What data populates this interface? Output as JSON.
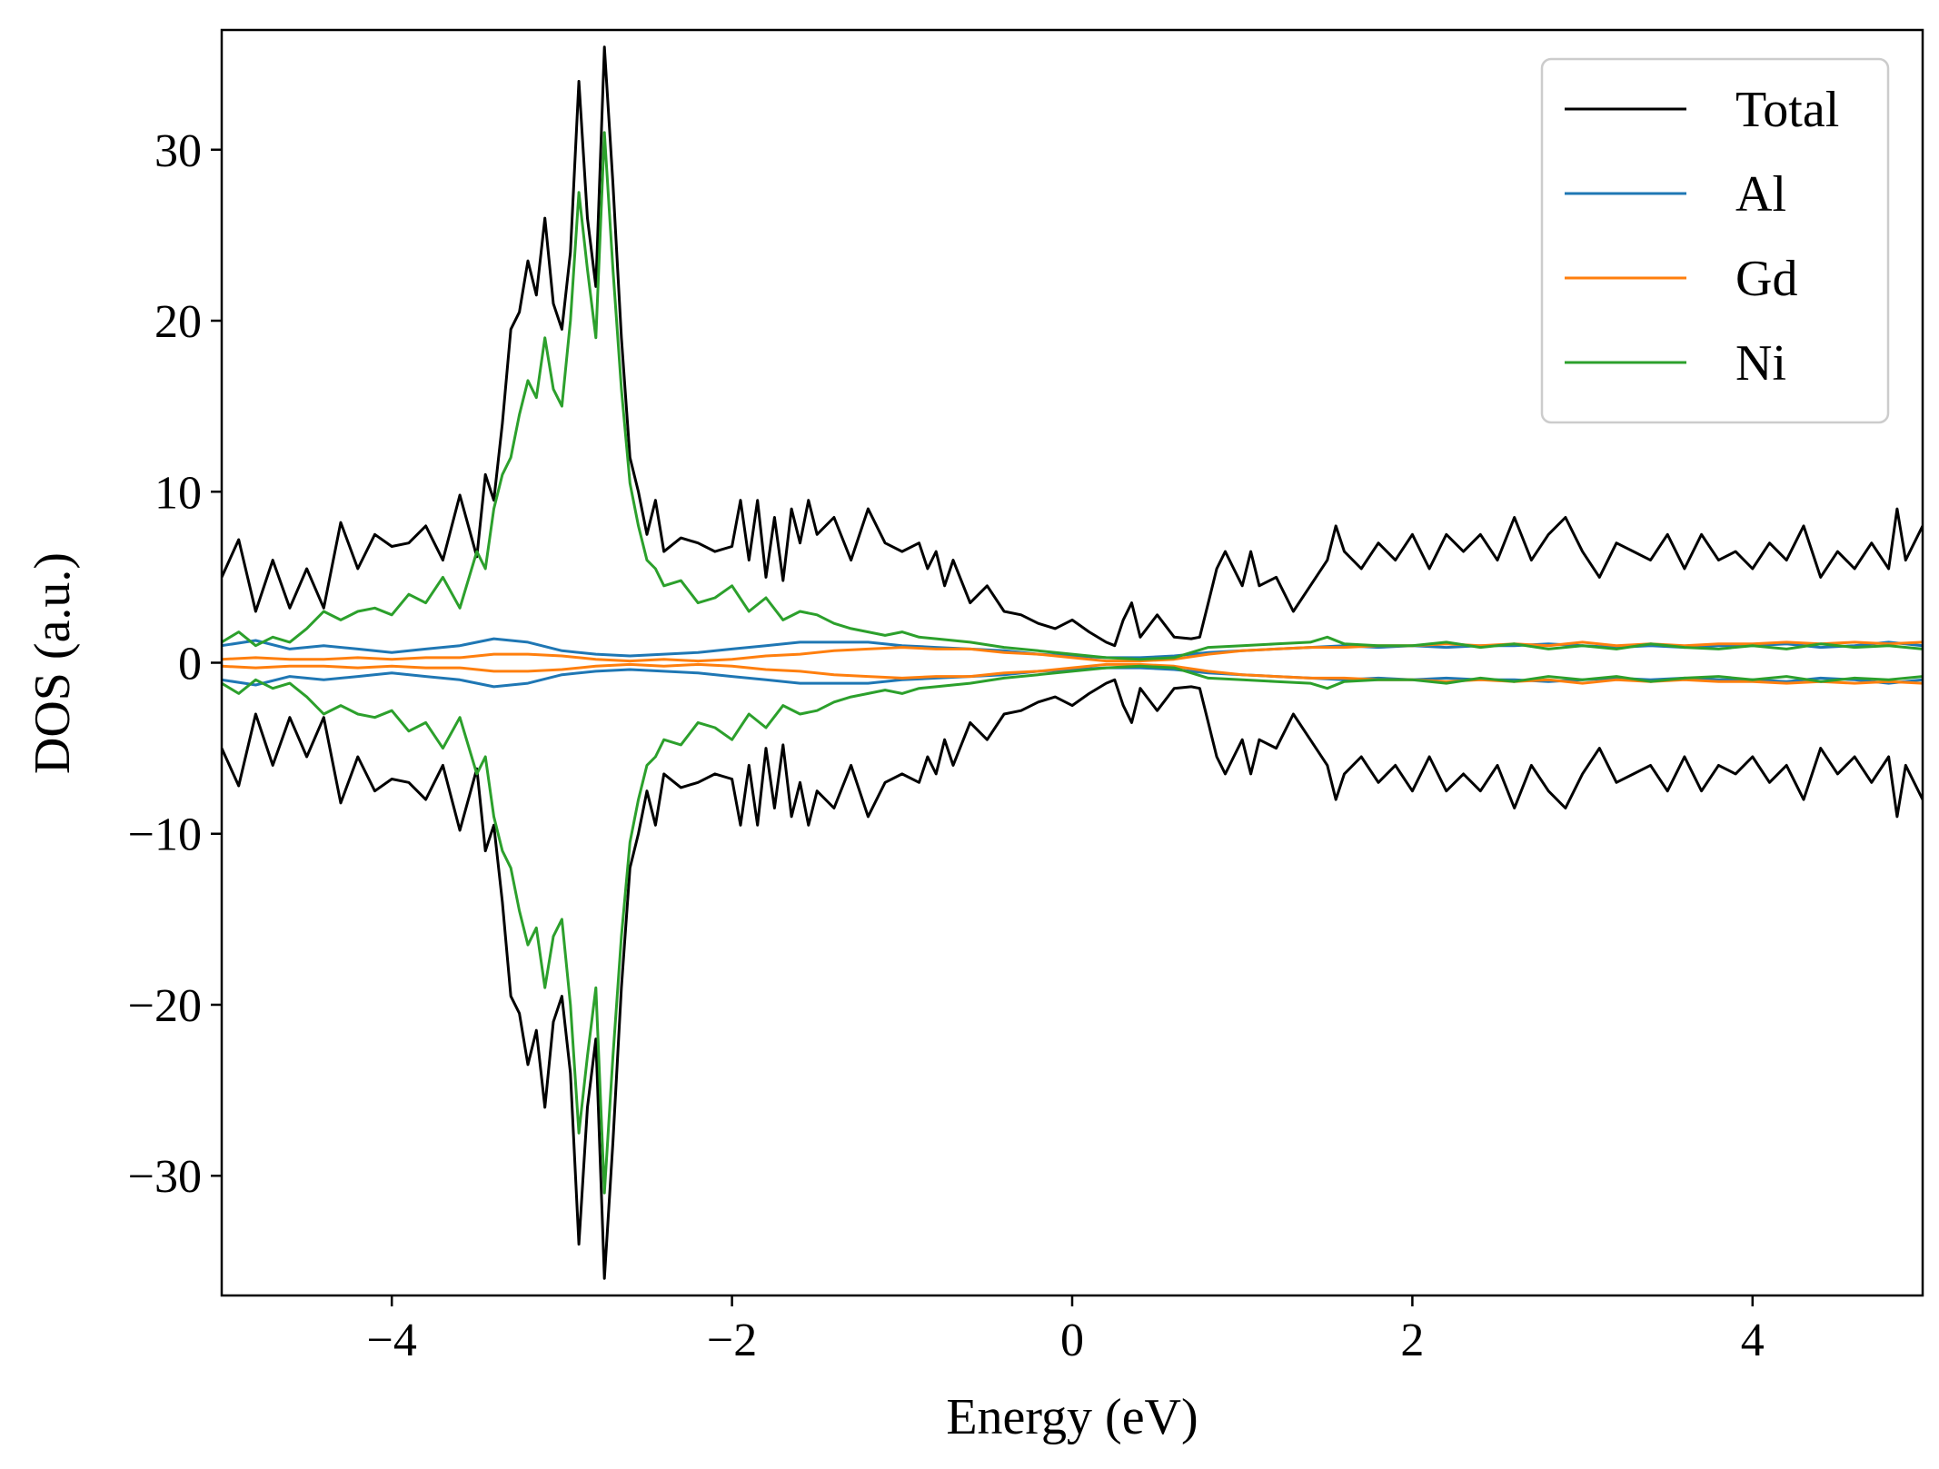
{
  "chart_data": {
    "type": "line",
    "xlabel": "Energy (eV)",
    "ylabel": "DOS (a.u.)",
    "xlim": [
      -5,
      5
    ],
    "ylim": [
      -37,
      37
    ],
    "x_ticks": [
      -4,
      -2,
      0,
      2,
      4
    ],
    "y_ticks": [
      -30,
      -20,
      -10,
      0,
      10,
      20,
      30
    ],
    "x_tick_labels": [
      "−4",
      "−2",
      "0",
      "2",
      "4"
    ],
    "y_tick_labels": [
      "−30",
      "−20",
      "−10",
      "0",
      "10",
      "20",
      "30"
    ],
    "grid": false,
    "legend_position": "top-right",
    "spin_symmetric": true,
    "series": [
      {
        "name": "Total",
        "color": "#000000",
        "points": [
          [
            -5.0,
            5.0
          ],
          [
            -4.9,
            7.2
          ],
          [
            -4.8,
            3.0
          ],
          [
            -4.7,
            6.0
          ],
          [
            -4.6,
            3.2
          ],
          [
            -4.5,
            5.5
          ],
          [
            -4.4,
            3.2
          ],
          [
            -4.3,
            8.2
          ],
          [
            -4.2,
            5.5
          ],
          [
            -4.1,
            7.5
          ],
          [
            -4.0,
            6.8
          ],
          [
            -3.9,
            7.0
          ],
          [
            -3.8,
            8.0
          ],
          [
            -3.7,
            6.0
          ],
          [
            -3.6,
            9.8
          ],
          [
            -3.5,
            6.2
          ],
          [
            -3.45,
            11.0
          ],
          [
            -3.4,
            9.5
          ],
          [
            -3.35,
            14.0
          ],
          [
            -3.3,
            19.5
          ],
          [
            -3.25,
            20.5
          ],
          [
            -3.2,
            23.5
          ],
          [
            -3.15,
            21.5
          ],
          [
            -3.1,
            26.0
          ],
          [
            -3.05,
            21.0
          ],
          [
            -3.0,
            19.5
          ],
          [
            -2.95,
            24.0
          ],
          [
            -2.9,
            34.0
          ],
          [
            -2.85,
            26.0
          ],
          [
            -2.8,
            22.0
          ],
          [
            -2.75,
            36.0
          ],
          [
            -2.7,
            28.0
          ],
          [
            -2.65,
            19.0
          ],
          [
            -2.6,
            12.0
          ],
          [
            -2.55,
            10.0
          ],
          [
            -2.5,
            7.5
          ],
          [
            -2.45,
            9.5
          ],
          [
            -2.4,
            6.5
          ],
          [
            -2.3,
            7.3
          ],
          [
            -2.2,
            7.0
          ],
          [
            -2.1,
            6.5
          ],
          [
            -2.0,
            6.8
          ],
          [
            -1.95,
            9.5
          ],
          [
            -1.9,
            6.0
          ],
          [
            -1.85,
            9.5
          ],
          [
            -1.8,
            5.0
          ],
          [
            -1.75,
            8.5
          ],
          [
            -1.7,
            4.8
          ],
          [
            -1.65,
            9.0
          ],
          [
            -1.6,
            7.0
          ],
          [
            -1.55,
            9.5
          ],
          [
            -1.5,
            7.5
          ],
          [
            -1.4,
            8.5
          ],
          [
            -1.3,
            6.0
          ],
          [
            -1.2,
            9.0
          ],
          [
            -1.1,
            7.0
          ],
          [
            -1.0,
            6.5
          ],
          [
            -0.9,
            7.0
          ],
          [
            -0.85,
            5.5
          ],
          [
            -0.8,
            6.5
          ],
          [
            -0.75,
            4.5
          ],
          [
            -0.7,
            6.0
          ],
          [
            -0.6,
            3.5
          ],
          [
            -0.5,
            4.5
          ],
          [
            -0.4,
            3.0
          ],
          [
            -0.3,
            2.8
          ],
          [
            -0.2,
            2.3
          ],
          [
            -0.1,
            2.0
          ],
          [
            0.0,
            2.5
          ],
          [
            0.1,
            1.8
          ],
          [
            0.2,
            1.2
          ],
          [
            0.25,
            1.0
          ],
          [
            0.3,
            2.5
          ],
          [
            0.35,
            3.5
          ],
          [
            0.4,
            1.5
          ],
          [
            0.5,
            2.8
          ],
          [
            0.6,
            1.5
          ],
          [
            0.7,
            1.4
          ],
          [
            0.75,
            1.5
          ],
          [
            0.8,
            3.5
          ],
          [
            0.85,
            5.5
          ],
          [
            0.9,
            6.5
          ],
          [
            0.95,
            5.5
          ],
          [
            1.0,
            4.5
          ],
          [
            1.05,
            6.5
          ],
          [
            1.1,
            4.5
          ],
          [
            1.2,
            5.0
          ],
          [
            1.3,
            3.0
          ],
          [
            1.4,
            4.5
          ],
          [
            1.5,
            6.0
          ],
          [
            1.55,
            8.0
          ],
          [
            1.6,
            6.5
          ],
          [
            1.7,
            5.5
          ],
          [
            1.8,
            7.0
          ],
          [
            1.9,
            6.0
          ],
          [
            2.0,
            7.5
          ],
          [
            2.1,
            5.5
          ],
          [
            2.2,
            7.5
          ],
          [
            2.3,
            6.5
          ],
          [
            2.4,
            7.5
          ],
          [
            2.5,
            6.0
          ],
          [
            2.6,
            8.5
          ],
          [
            2.7,
            6.0
          ],
          [
            2.8,
            7.5
          ],
          [
            2.9,
            8.5
          ],
          [
            3.0,
            6.5
          ],
          [
            3.1,
            5.0
          ],
          [
            3.2,
            7.0
          ],
          [
            3.3,
            6.5
          ],
          [
            3.4,
            6.0
          ],
          [
            3.5,
            7.5
          ],
          [
            3.6,
            5.5
          ],
          [
            3.7,
            7.5
          ],
          [
            3.8,
            6.0
          ],
          [
            3.9,
            6.5
          ],
          [
            4.0,
            5.5
          ],
          [
            4.1,
            7.0
          ],
          [
            4.2,
            6.0
          ],
          [
            4.3,
            8.0
          ],
          [
            4.4,
            5.0
          ],
          [
            4.5,
            6.5
          ],
          [
            4.6,
            5.5
          ],
          [
            4.7,
            7.0
          ],
          [
            4.8,
            5.5
          ],
          [
            4.85,
            9.0
          ],
          [
            4.9,
            6.0
          ],
          [
            5.0,
            8.0
          ]
        ]
      },
      {
        "name": "Al",
        "color": "#1f77b4",
        "points": [
          [
            -5.0,
            1.0
          ],
          [
            -4.8,
            1.3
          ],
          [
            -4.6,
            0.8
          ],
          [
            -4.4,
            1.0
          ],
          [
            -4.2,
            0.8
          ],
          [
            -4.0,
            0.6
          ],
          [
            -3.8,
            0.8
          ],
          [
            -3.6,
            1.0
          ],
          [
            -3.4,
            1.4
          ],
          [
            -3.2,
            1.2
          ],
          [
            -3.0,
            0.7
          ],
          [
            -2.8,
            0.5
          ],
          [
            -2.6,
            0.4
          ],
          [
            -2.4,
            0.5
          ],
          [
            -2.2,
            0.6
          ],
          [
            -2.0,
            0.8
          ],
          [
            -1.8,
            1.0
          ],
          [
            -1.6,
            1.2
          ],
          [
            -1.4,
            1.2
          ],
          [
            -1.2,
            1.2
          ],
          [
            -1.0,
            1.0
          ],
          [
            -0.8,
            0.9
          ],
          [
            -0.6,
            0.8
          ],
          [
            -0.4,
            0.7
          ],
          [
            -0.2,
            0.5
          ],
          [
            0.0,
            0.4
          ],
          [
            0.2,
            0.3
          ],
          [
            0.4,
            0.3
          ],
          [
            0.6,
            0.4
          ],
          [
            0.8,
            0.6
          ],
          [
            1.0,
            0.7
          ],
          [
            1.2,
            0.8
          ],
          [
            1.4,
            0.9
          ],
          [
            1.6,
            1.0
          ],
          [
            1.8,
            0.9
          ],
          [
            2.0,
            1.0
          ],
          [
            2.2,
            0.9
          ],
          [
            2.4,
            1.0
          ],
          [
            2.6,
            1.0
          ],
          [
            2.8,
            1.1
          ],
          [
            3.0,
            1.0
          ],
          [
            3.2,
            0.9
          ],
          [
            3.4,
            1.0
          ],
          [
            3.6,
            0.9
          ],
          [
            3.8,
            1.0
          ],
          [
            4.0,
            1.0
          ],
          [
            4.2,
            1.1
          ],
          [
            4.4,
            0.9
          ],
          [
            4.6,
            1.0
          ],
          [
            4.8,
            1.2
          ],
          [
            5.0,
            1.0
          ]
        ]
      },
      {
        "name": "Gd",
        "color": "#ff7f0e",
        "points": [
          [
            -5.0,
            0.2
          ],
          [
            -4.8,
            0.3
          ],
          [
            -4.6,
            0.2
          ],
          [
            -4.4,
            0.2
          ],
          [
            -4.2,
            0.3
          ],
          [
            -4.0,
            0.2
          ],
          [
            -3.8,
            0.3
          ],
          [
            -3.6,
            0.3
          ],
          [
            -3.4,
            0.5
          ],
          [
            -3.2,
            0.5
          ],
          [
            -3.0,
            0.4
          ],
          [
            -2.8,
            0.2
          ],
          [
            -2.6,
            0.1
          ],
          [
            -2.4,
            0.2
          ],
          [
            -2.2,
            0.1
          ],
          [
            -2.0,
            0.2
          ],
          [
            -1.8,
            0.4
          ],
          [
            -1.6,
            0.5
          ],
          [
            -1.4,
            0.7
          ],
          [
            -1.2,
            0.8
          ],
          [
            -1.0,
            0.9
          ],
          [
            -0.8,
            0.8
          ],
          [
            -0.6,
            0.8
          ],
          [
            -0.4,
            0.6
          ],
          [
            -0.2,
            0.5
          ],
          [
            0.0,
            0.3
          ],
          [
            0.2,
            0.1
          ],
          [
            0.4,
            0.1
          ],
          [
            0.6,
            0.2
          ],
          [
            0.8,
            0.5
          ],
          [
            1.0,
            0.7
          ],
          [
            1.2,
            0.8
          ],
          [
            1.4,
            0.9
          ],
          [
            1.6,
            0.9
          ],
          [
            1.8,
            1.0
          ],
          [
            2.0,
            1.0
          ],
          [
            2.2,
            1.1
          ],
          [
            2.4,
            1.0
          ],
          [
            2.6,
            1.1
          ],
          [
            2.8,
            1.0
          ],
          [
            3.0,
            1.2
          ],
          [
            3.2,
            1.0
          ],
          [
            3.4,
            1.1
          ],
          [
            3.6,
            1.0
          ],
          [
            3.8,
            1.1
          ],
          [
            4.0,
            1.1
          ],
          [
            4.2,
            1.2
          ],
          [
            4.4,
            1.1
          ],
          [
            4.6,
            1.2
          ],
          [
            4.8,
            1.1
          ],
          [
            5.0,
            1.2
          ]
        ]
      },
      {
        "name": "Ni",
        "color": "#2ca02c",
        "points": [
          [
            -5.0,
            1.2
          ],
          [
            -4.9,
            1.8
          ],
          [
            -4.8,
            1.0
          ],
          [
            -4.7,
            1.5
          ],
          [
            -4.6,
            1.2
          ],
          [
            -4.5,
            2.0
          ],
          [
            -4.4,
            3.0
          ],
          [
            -4.3,
            2.5
          ],
          [
            -4.2,
            3.0
          ],
          [
            -4.1,
            3.2
          ],
          [
            -4.0,
            2.8
          ],
          [
            -3.9,
            4.0
          ],
          [
            -3.8,
            3.5
          ],
          [
            -3.7,
            5.0
          ],
          [
            -3.6,
            3.2
          ],
          [
            -3.5,
            6.5
          ],
          [
            -3.45,
            5.5
          ],
          [
            -3.4,
            9.0
          ],
          [
            -3.35,
            11.0
          ],
          [
            -3.3,
            12.0
          ],
          [
            -3.25,
            14.5
          ],
          [
            -3.2,
            16.5
          ],
          [
            -3.15,
            15.5
          ],
          [
            -3.1,
            19.0
          ],
          [
            -3.05,
            16.0
          ],
          [
            -3.0,
            15.0
          ],
          [
            -2.95,
            20.0
          ],
          [
            -2.9,
            27.5
          ],
          [
            -2.85,
            23.0
          ],
          [
            -2.8,
            19.0
          ],
          [
            -2.75,
            31.0
          ],
          [
            -2.7,
            23.0
          ],
          [
            -2.65,
            16.0
          ],
          [
            -2.6,
            10.5
          ],
          [
            -2.55,
            8.0
          ],
          [
            -2.5,
            6.0
          ],
          [
            -2.45,
            5.5
          ],
          [
            -2.4,
            4.5
          ],
          [
            -2.3,
            4.8
          ],
          [
            -2.2,
            3.5
          ],
          [
            -2.1,
            3.8
          ],
          [
            -2.0,
            4.5
          ],
          [
            -1.9,
            3.0
          ],
          [
            -1.8,
            3.8
          ],
          [
            -1.7,
            2.5
          ],
          [
            -1.6,
            3.0
          ],
          [
            -1.5,
            2.8
          ],
          [
            -1.4,
            2.3
          ],
          [
            -1.3,
            2.0
          ],
          [
            -1.2,
            1.8
          ],
          [
            -1.1,
            1.6
          ],
          [
            -1.0,
            1.8
          ],
          [
            -0.9,
            1.5
          ],
          [
            -0.8,
            1.4
          ],
          [
            -0.6,
            1.2
          ],
          [
            -0.4,
            0.9
          ],
          [
            -0.2,
            0.7
          ],
          [
            0.0,
            0.5
          ],
          [
            0.2,
            0.3
          ],
          [
            0.4,
            0.2
          ],
          [
            0.6,
            0.3
          ],
          [
            0.8,
            0.9
          ],
          [
            1.0,
            1.0
          ],
          [
            1.2,
            1.1
          ],
          [
            1.4,
            1.2
          ],
          [
            1.5,
            1.5
          ],
          [
            1.6,
            1.1
          ],
          [
            1.8,
            1.0
          ],
          [
            2.0,
            1.0
          ],
          [
            2.2,
            1.2
          ],
          [
            2.4,
            0.9
          ],
          [
            2.6,
            1.1
          ],
          [
            2.8,
            0.8
          ],
          [
            3.0,
            1.0
          ],
          [
            3.2,
            0.8
          ],
          [
            3.4,
            1.1
          ],
          [
            3.6,
            0.9
          ],
          [
            3.8,
            0.8
          ],
          [
            4.0,
            1.0
          ],
          [
            4.2,
            0.8
          ],
          [
            4.4,
            1.1
          ],
          [
            4.6,
            0.9
          ],
          [
            4.8,
            1.0
          ],
          [
            5.0,
            0.8
          ]
        ]
      }
    ]
  }
}
